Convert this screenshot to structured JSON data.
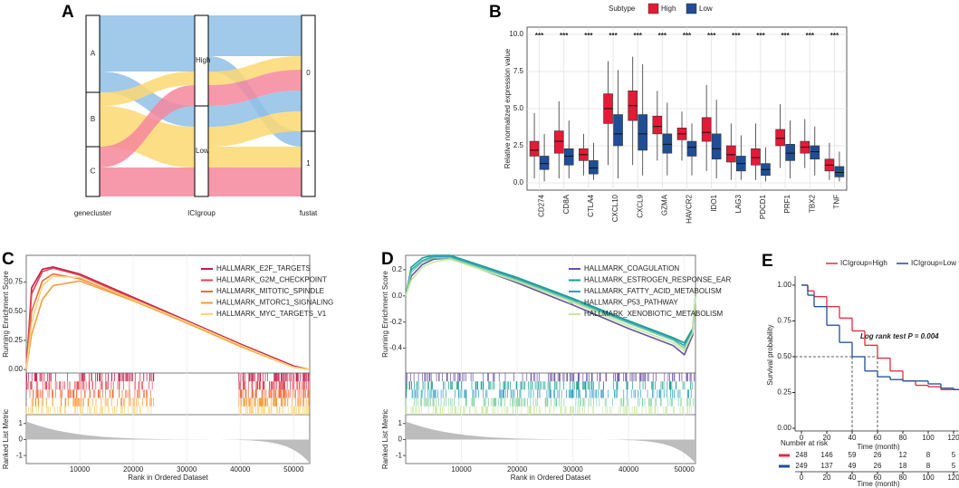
{
  "chart_data": [
    {
      "type": "sankey",
      "panel": "A",
      "axes": [
        "genecluster",
        "ICIgroup",
        "fustat"
      ],
      "nodes": [
        [
          "A",
          "B",
          "C"
        ],
        [
          "High",
          "Low"
        ],
        [
          "0",
          "1"
        ]
      ]
    },
    {
      "type": "box",
      "panel": "B",
      "ylabel": "Relative normalized expression value",
      "legend_title": "Subtype",
      "categories": [
        "CD274",
        "CD8A",
        "CTLA4",
        "CXCL10",
        "CXCL9",
        "GZMA",
        "HAVCR2",
        "IDO1",
        "LAG3",
        "PDCD1",
        "PRF1",
        "TBX2",
        "TNF"
      ],
      "annotations": [
        "***",
        "***",
        "***",
        "***",
        "***",
        "***",
        "***",
        "***",
        "***",
        "***",
        "***",
        "***",
        "***"
      ],
      "series": [
        {
          "name": "High",
          "color": "#e41a37",
          "min": [
            0.3,
            0.3,
            0.5,
            1.2,
            1.2,
            1.5,
            1.5,
            0.8,
            0.2,
            0.2,
            1.0,
            1.0,
            0.2
          ],
          "q1": [
            1.8,
            2.0,
            1.5,
            4.0,
            4.2,
            3.3,
            2.9,
            2.8,
            1.4,
            1.2,
            2.5,
            2.0,
            0.8
          ],
          "median": [
            2.2,
            2.8,
            1.9,
            5.0,
            5.2,
            3.8,
            3.3,
            3.4,
            1.9,
            1.7,
            3.0,
            2.4,
            1.2
          ],
          "q3": [
            2.8,
            3.5,
            2.3,
            6.0,
            6.2,
            4.5,
            3.7,
            4.4,
            2.5,
            2.3,
            3.6,
            2.8,
            1.6
          ],
          "max": [
            4.7,
            5.5,
            3.3,
            8.2,
            8.5,
            6.2,
            4.8,
            6.6,
            4.0,
            4.0,
            5.3,
            4.3,
            2.7
          ]
        },
        {
          "name": "Low",
          "color": "#1f4e96",
          "min": [
            0.1,
            0.3,
            0.2,
            0.3,
            0.5,
            0.5,
            0.5,
            0.3,
            0.2,
            0.1,
            0.3,
            0.5,
            0.1
          ],
          "q1": [
            0.9,
            1.2,
            0.6,
            2.5,
            2.2,
            2.0,
            1.8,
            1.6,
            0.8,
            0.5,
            1.5,
            1.6,
            0.4
          ],
          "median": [
            1.3,
            1.8,
            1.0,
            3.3,
            3.3,
            2.6,
            2.4,
            2.3,
            1.3,
            0.9,
            2.0,
            2.1,
            0.7
          ],
          "q3": [
            1.8,
            2.3,
            1.5,
            4.6,
            4.6,
            3.3,
            2.8,
            3.3,
            1.8,
            1.3,
            2.6,
            2.5,
            1.1
          ],
          "max": [
            3.3,
            4.2,
            2.7,
            7.6,
            8.0,
            5.4,
            4.0,
            5.6,
            3.2,
            2.4,
            4.2,
            3.8,
            2.1
          ]
        }
      ],
      "ylim": [
        -0.49,
        10.49
      ],
      "yticks": [
        {
          "value": 0,
          "label": "0.0"
        },
        2.5,
        {
          "value": 5,
          "label": "5.0"
        },
        7.5,
        {
          "value": 10,
          "label": "10.0"
        }
      ]
    },
    {
      "type": "gsea",
      "panel": "C",
      "ylabel": "Running Enrichment Score",
      "y2label": "Ranked List Metric",
      "xlabel": "Rank in Ordered Dataset",
      "x": [
        0,
        1000,
        3000,
        5000,
        10000,
        20000,
        30000,
        40000,
        50000,
        53000
      ],
      "series": [
        {
          "name": "HALLMARK_E2F_TARGETS",
          "color": "#c51b4a",
          "values": [
            0,
            0.7,
            0.86,
            0.88,
            0.82,
            0.62,
            0.42,
            0.22,
            0.03,
            0
          ]
        },
        {
          "name": "HALLMARK_G2M_CHECKPOINT",
          "color": "#e8404f",
          "values": [
            0,
            0.65,
            0.84,
            0.87,
            0.81,
            0.61,
            0.41,
            0.21,
            0.02,
            0
          ]
        },
        {
          "name": "HALLMARK_MITOTIC_SPINDLE",
          "color": "#f06b3c",
          "values": [
            0,
            0.5,
            0.76,
            0.82,
            0.78,
            0.6,
            0.4,
            0.2,
            0.02,
            0
          ]
        },
        {
          "name": "HALLMARK_MTORC1_SIGNALING",
          "color": "#f59e3a",
          "values": [
            0,
            0.3,
            0.6,
            0.72,
            0.76,
            0.59,
            0.4,
            0.2,
            0.02,
            0
          ]
        },
        {
          "name": "HALLMARK_MYC_TARGETS_V1",
          "color": "#f8d67a",
          "values": [
            0,
            0.4,
            0.72,
            0.8,
            0.79,
            0.6,
            0.41,
            0.21,
            0.02,
            0
          ]
        }
      ],
      "xlim": [
        0,
        53000
      ],
      "xticks": [
        10000,
        20000,
        30000,
        40000,
        50000
      ],
      "ylim": [
        -0.03,
        0.98
      ],
      "yticks": [
        {
          "value": 0,
          "label": "0.00"
        },
        0.25,
        {
          "value": 0.5,
          "label": "0.50"
        },
        0.75
      ],
      "y2lim": [
        -1.5,
        1.55
      ],
      "y2ticks": [
        1,
        0,
        -1
      ]
    },
    {
      "type": "gsea",
      "panel": "D",
      "ylabel": "Running Enrichment Score",
      "y2label": "Ranked List Metric",
      "xlabel": "Rank in Ordered Dataset",
      "x": [
        0,
        1000,
        3000,
        5000,
        8000,
        20000,
        30000,
        40000,
        48000,
        50000,
        51500,
        52000
      ],
      "series": [
        {
          "name": "HALLMARK_COAGULATION",
          "color": "#6a51a3",
          "values": [
            0,
            0.15,
            0.24,
            0.28,
            0.29,
            0.1,
            -0.07,
            -0.25,
            -0.38,
            -0.45,
            -0.3,
            0
          ]
        },
        {
          "name": "HALLMARK_ESTROGEN_RESPONSE_EAR",
          "color": "#1a9e8f",
          "values": [
            0,
            0.22,
            0.29,
            0.31,
            0.31,
            0.14,
            -0.02,
            -0.19,
            -0.32,
            -0.36,
            -0.25,
            0
          ]
        },
        {
          "name": "HALLMARK_FATTY_ACID_METABOLISM",
          "color": "#2c9fc2",
          "values": [
            0,
            0.2,
            0.27,
            0.3,
            0.3,
            0.13,
            -0.03,
            -0.2,
            -0.33,
            -0.38,
            -0.27,
            0
          ]
        },
        {
          "name": "HALLMARK_P53_PATHWAY",
          "color": "#7fcf9d",
          "values": [
            0,
            0.18,
            0.26,
            0.29,
            0.29,
            0.12,
            -0.04,
            -0.21,
            -0.34,
            -0.4,
            -0.28,
            0
          ]
        },
        {
          "name": "HALLMARK_XENOBIOTIC_METABOLISM",
          "color": "#c7e8a0",
          "values": [
            0,
            0.12,
            0.22,
            0.26,
            0.28,
            0.11,
            -0.05,
            -0.23,
            -0.36,
            -0.42,
            -0.28,
            0
          ]
        }
      ],
      "xlim": [
        0,
        52000
      ],
      "xticks": [
        10000,
        20000,
        30000,
        40000,
        50000
      ],
      "ylim": [
        -0.59,
        0.31
      ],
      "yticks": [
        0.2,
        {
          "value": 0,
          "label": "0.0"
        },
        -0.2,
        -0.4
      ],
      "y2lim": [
        -1.5,
        1.55
      ],
      "y2ticks": [
        1,
        0,
        -1
      ]
    },
    {
      "type": "km",
      "panel": "E",
      "ylabel": "Survival probability",
      "xlabel": "Time (month)",
      "annotation": "Log rank test P = 0.004",
      "risk_title": "Number at risk",
      "x": [
        0,
        5,
        10,
        20,
        30,
        40,
        50,
        60,
        70,
        80,
        90,
        100,
        110,
        120,
        125
      ],
      "series": [
        {
          "name": "ICIgroup=High",
          "color": "#e8283a",
          "values": [
            1,
            0.96,
            0.92,
            0.85,
            0.77,
            0.68,
            0.58,
            0.49,
            0.4,
            0.33,
            0.3,
            0.29,
            0.27,
            0.27,
            0.27
          ],
          "at_risk": [
            248,
            146,
            59,
            26,
            12,
            8,
            5
          ]
        },
        {
          "name": "ICIgroup=Low",
          "color": "#1d4e9a",
          "values": [
            1,
            0.93,
            0.85,
            0.72,
            0.6,
            0.5,
            0.4,
            0.36,
            0.34,
            0.33,
            0.33,
            0.31,
            0.28,
            0.27,
            0.27
          ],
          "at_risk": [
            249,
            137,
            49,
            26,
            18,
            8,
            5
          ]
        }
      ],
      "median_level": 0.5,
      "median_times": [
        40,
        60
      ],
      "xlim": [
        -5,
        124
      ],
      "xticks": [
        0,
        20,
        40,
        60,
        80,
        100,
        120
      ],
      "ylim": [
        -0.019,
        1.063
      ],
      "yticks": [
        {
          "value": 0,
          "label": "0.00"
        },
        {
          "value": 0.25,
          "label": "0.25"
        },
        {
          "value": 0.5,
          "label": "0.50"
        },
        {
          "value": 0.75,
          "label": "0.75"
        },
        {
          "value": 1,
          "label": "1.00"
        }
      ]
    }
  ]
}
